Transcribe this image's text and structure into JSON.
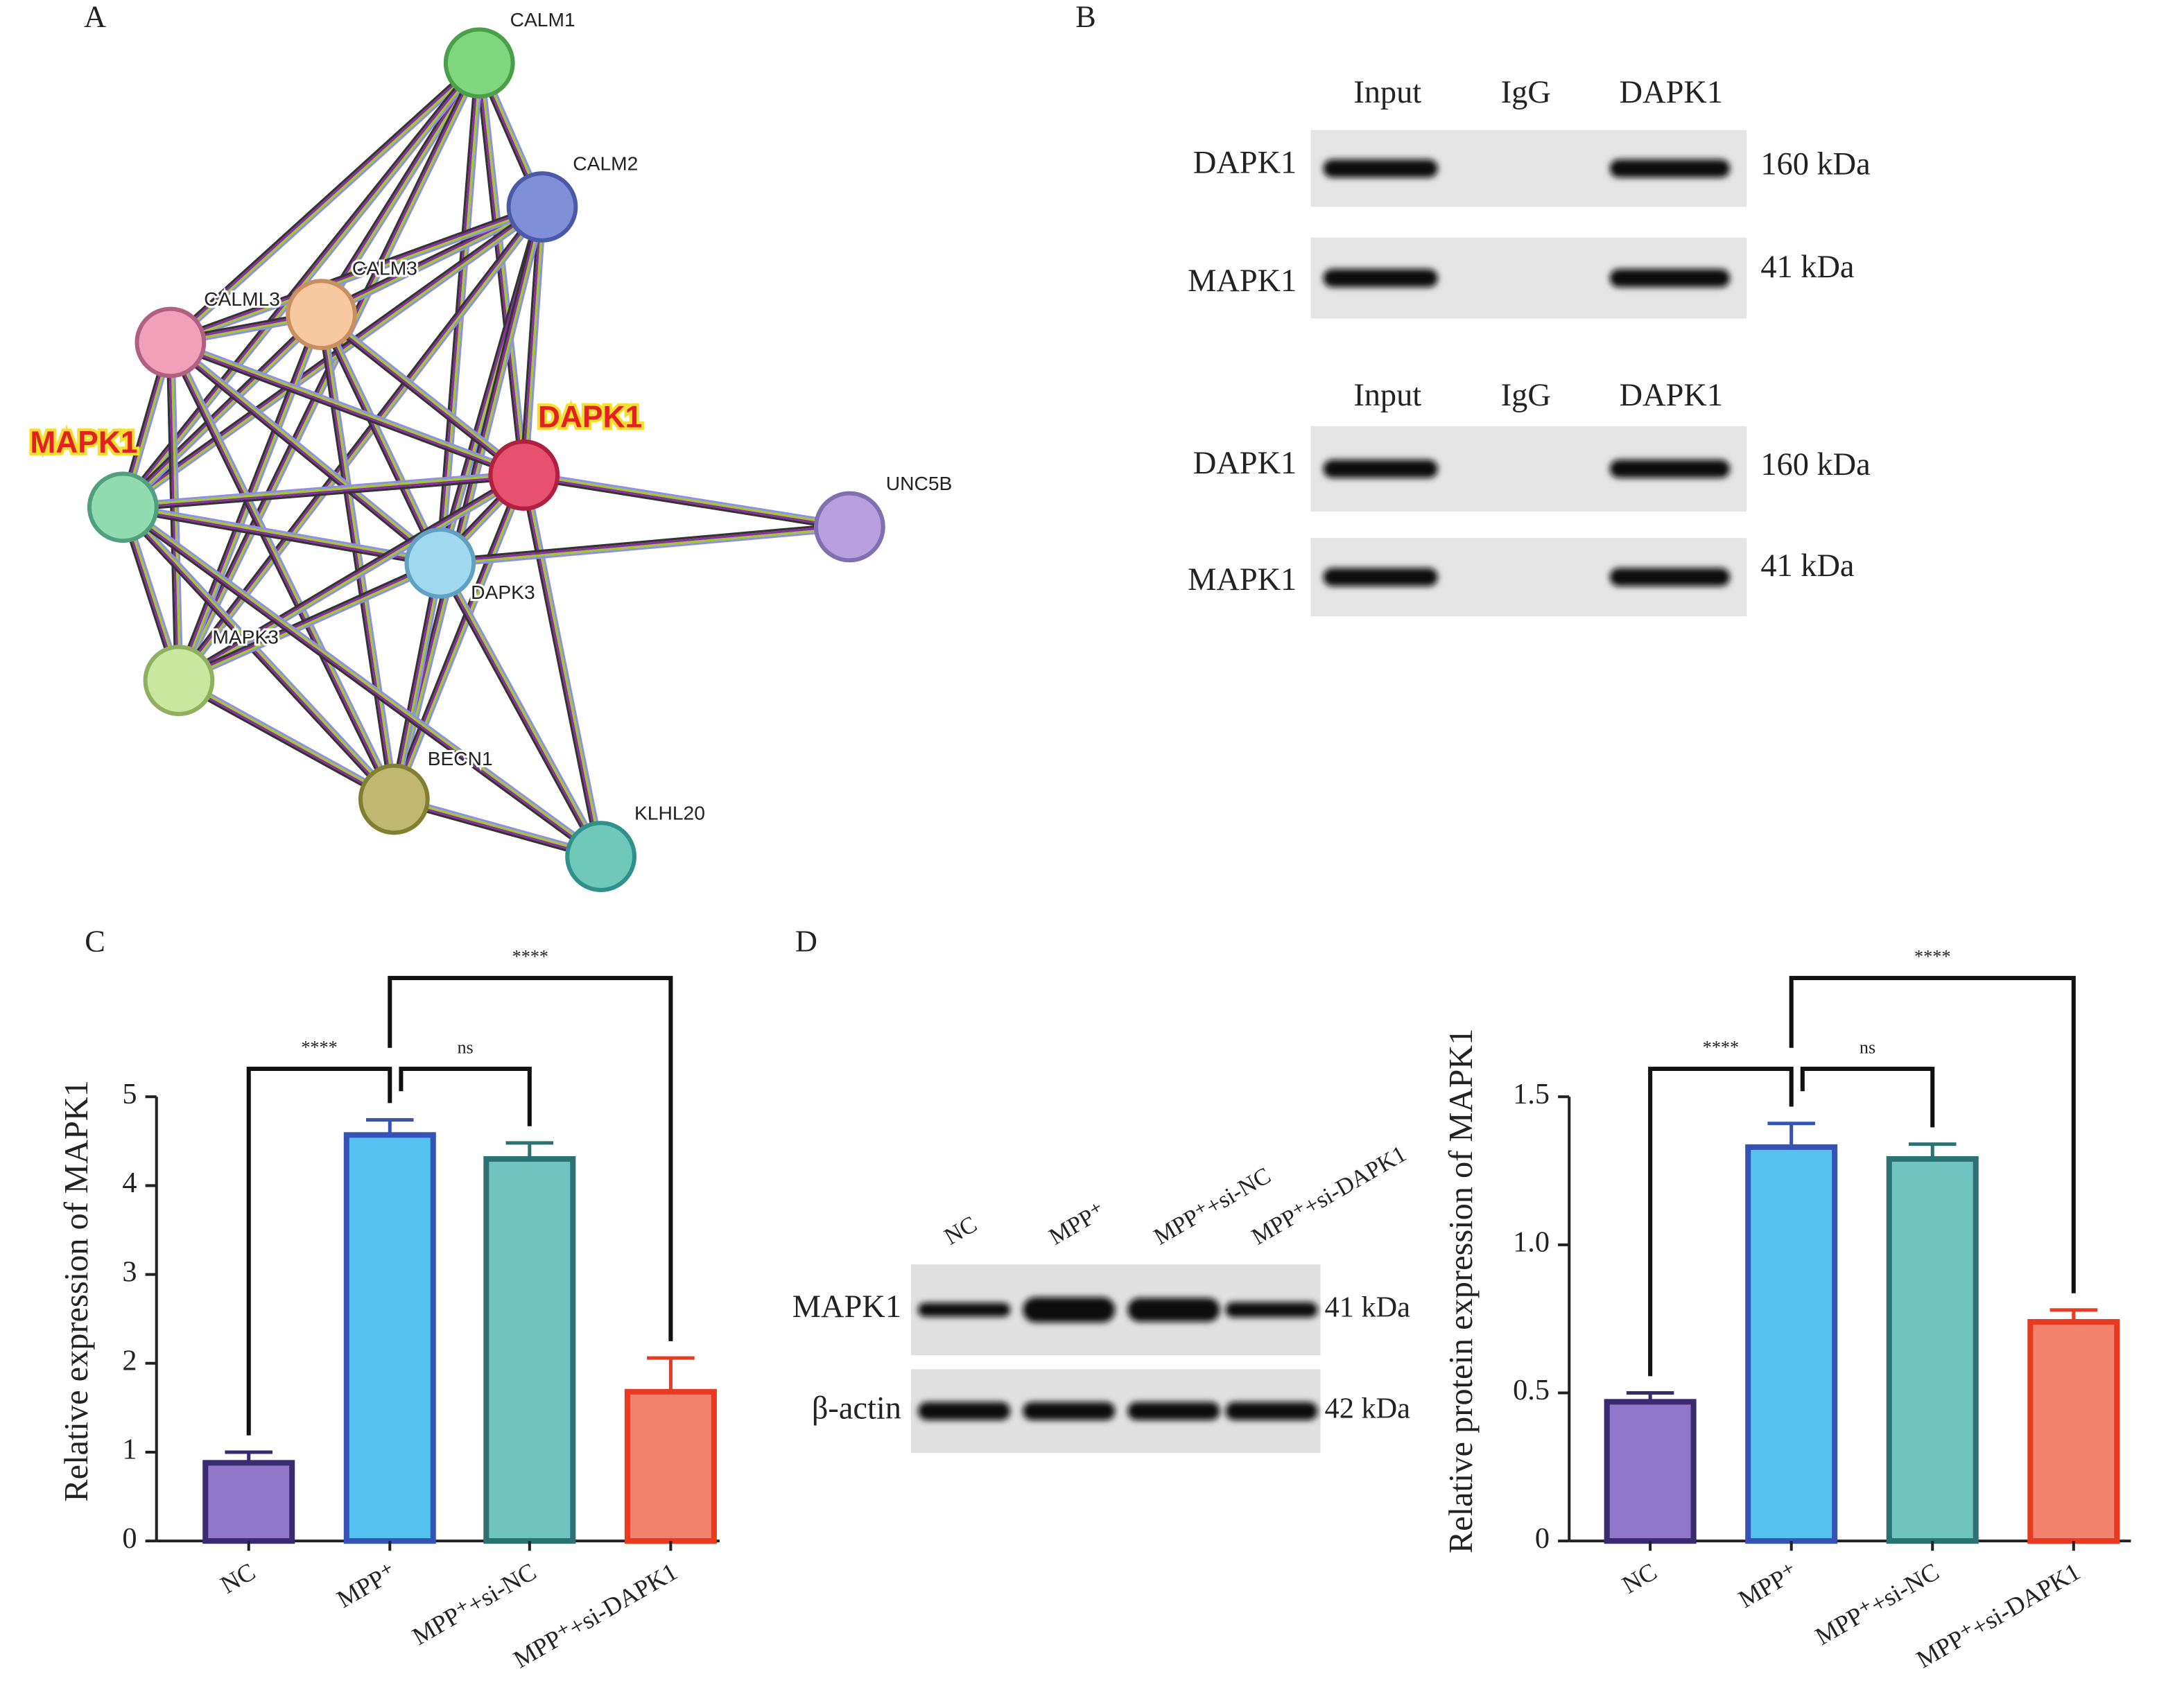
{
  "panel_labels": [
    "A",
    "B",
    "C",
    "D"
  ],
  "network": {
    "nodes": [
      "CALM1",
      "CALM2",
      "CALM3",
      "CALML3",
      "MAPK1",
      "DAPK1",
      "UNC5B",
      "DAPK3",
      "MAPK3",
      "BECN1",
      "KLHL20"
    ]
  },
  "blot_b": [
    {
      "lanes": [
        "Input",
        "IgG",
        "DAPK1"
      ],
      "rows": [
        {
          "label": "DAPK1",
          "size": "160 kDa"
        },
        {
          "label": "MAPK1",
          "size": "41 kDa"
        }
      ]
    },
    {
      "lanes": [
        "Input",
        "IgG",
        "DAPK1"
      ],
      "rows": [
        {
          "label": "DAPK1",
          "size": "160 kDa"
        },
        {
          "label": "MAPK1",
          "size": "41 kDa"
        }
      ]
    }
  ],
  "blot_d": {
    "lanes": [
      "NC",
      "MPP⁺",
      "MPP⁺+si-NC",
      "MPP⁺+si-DAPK1"
    ],
    "rows": [
      {
        "label": "MAPK1",
        "size": "41 kDa"
      },
      {
        "label": "β-actin",
        "size": "42 kDa"
      }
    ]
  },
  "chart_data": [
    {
      "type": "bar",
      "y_label": "Relative expression of MAPK1",
      "categories": [
        "NC",
        "MPP⁺",
        "MPP⁺+si-NC",
        "MPP⁺+si-DAPK1"
      ],
      "values": [
        0.88,
        4.57,
        4.3,
        1.68
      ],
      "errors": [
        0.12,
        0.17,
        0.18,
        0.38
      ],
      "colors": [
        "#9177c9",
        "#56c2f1",
        "#6fc4c1",
        "#f3826f"
      ],
      "edge_colors": [
        "#3a2a70",
        "#3553b5",
        "#2b7272",
        "#e83a20"
      ],
      "ylim": [
        0,
        5
      ],
      "yticks": [
        0,
        1,
        2,
        3,
        4,
        5
      ],
      "significance": [
        "****",
        "ns",
        "****"
      ]
    },
    {
      "type": "bar",
      "y_label": "Relative protein expression of MAPK1",
      "categories": [
        "NC",
        "MPP⁺",
        "MPP⁺+si-NC",
        "MPP⁺+si-DAPK1"
      ],
      "values": [
        0.47,
        1.33,
        1.29,
        0.74
      ],
      "errors": [
        0.03,
        0.08,
        0.05,
        0.04
      ],
      "colors": [
        "#9177c9",
        "#56c2f1",
        "#6fc4c1",
        "#f3826f"
      ],
      "edge_colors": [
        "#3a2a70",
        "#3553b5",
        "#2b7272",
        "#e83a20"
      ],
      "ylim": [
        0,
        1.5
      ],
      "yticks": [
        0,
        {
          "value": 0.5,
          "label": "0.5"
        },
        {
          "value": 1.0,
          "label": "1.0"
        },
        1.5
      ],
      "significance": [
        "****",
        "ns",
        "****"
      ]
    }
  ]
}
